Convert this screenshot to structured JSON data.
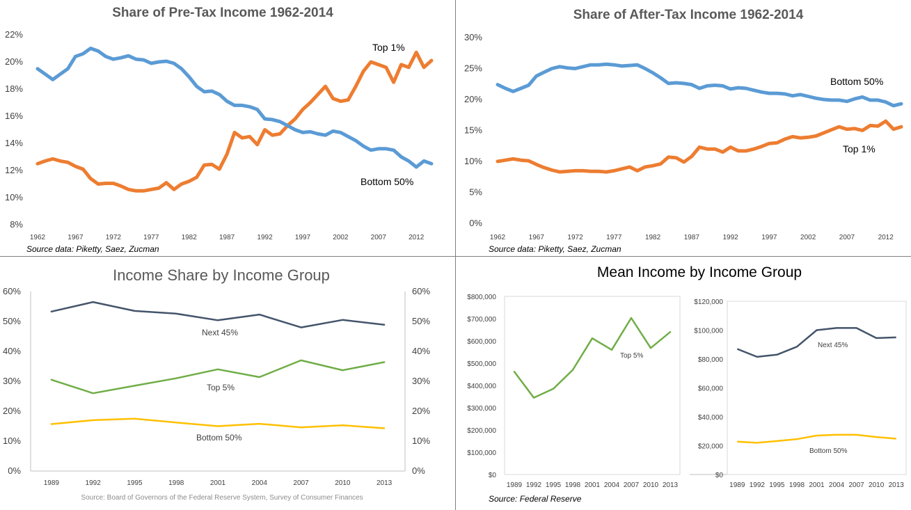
{
  "chart_data": [
    {
      "type": "line",
      "title": "Share of Pre-Tax Income 1962-2014",
      "source": "Source data:  Piketty, Saez, Zucman",
      "ylim": [
        8,
        22
      ],
      "yticks": [
        "8%",
        "10%",
        "12%",
        "14%",
        "16%",
        "18%",
        "20%",
        "22%"
      ],
      "xticks": [
        "1962",
        "1967",
        "1972",
        "1977",
        "1982",
        "1987",
        "1992",
        "1997",
        "2002",
        "2007",
        "2012"
      ],
      "xlim": [
        1962,
        2014
      ],
      "grid": false,
      "series": [
        {
          "name": "Top 1%",
          "color": "#ed7d31",
          "x": [
            1962,
            1963,
            1964,
            1965,
            1966,
            1967,
            1968,
            1969,
            1970,
            1971,
            1972,
            1973,
            1974,
            1975,
            1976,
            1977,
            1978,
            1979,
            1980,
            1981,
            1982,
            1983,
            1984,
            1985,
            1986,
            1987,
            1988,
            1989,
            1990,
            1991,
            1992,
            1993,
            1994,
            1995,
            1996,
            1997,
            1998,
            1999,
            2000,
            2001,
            2002,
            2003,
            2004,
            2005,
            2006,
            2007,
            2008,
            2009,
            2010,
            2011,
            2012,
            2013,
            2014
          ],
          "values": [
            12.5,
            12.7,
            12.85,
            12.7,
            12.6,
            12.3,
            12.1,
            11.4,
            11.0,
            11.05,
            11.05,
            10.85,
            10.6,
            10.5,
            10.5,
            10.6,
            10.7,
            11.1,
            10.6,
            11.0,
            11.2,
            11.5,
            12.4,
            12.45,
            12.1,
            13.2,
            14.8,
            14.4,
            14.5,
            13.9,
            15.0,
            14.6,
            14.7,
            15.3,
            15.8,
            16.5,
            17.0,
            17.6,
            18.2,
            17.3,
            17.1,
            17.2,
            18.2,
            19.3,
            20.0,
            19.8,
            19.6,
            18.5,
            19.8,
            19.6,
            20.7,
            19.6,
            20.1
          ]
        },
        {
          "name": "Bottom 50%",
          "color": "#5b9bd5",
          "x": [
            1962,
            1963,
            1964,
            1965,
            1966,
            1967,
            1968,
            1969,
            1970,
            1971,
            1972,
            1973,
            1974,
            1975,
            1976,
            1977,
            1978,
            1979,
            1980,
            1981,
            1982,
            1983,
            1984,
            1985,
            1986,
            1987,
            1988,
            1989,
            1990,
            1991,
            1992,
            1993,
            1994,
            1995,
            1996,
            1997,
            1998,
            1999,
            2000,
            2001,
            2002,
            2003,
            2004,
            2005,
            2006,
            2007,
            2008,
            2009,
            2010,
            2011,
            2012,
            2013,
            2014
          ],
          "values": [
            19.5,
            19.1,
            18.7,
            19.1,
            19.5,
            20.4,
            20.6,
            21.0,
            20.8,
            20.4,
            20.2,
            20.3,
            20.45,
            20.2,
            20.15,
            19.9,
            20.0,
            20.05,
            19.9,
            19.5,
            18.9,
            18.2,
            17.8,
            17.85,
            17.6,
            17.1,
            16.8,
            16.8,
            16.7,
            16.5,
            15.8,
            15.75,
            15.6,
            15.3,
            15.0,
            14.8,
            14.85,
            14.7,
            14.6,
            14.9,
            14.8,
            14.5,
            14.2,
            13.8,
            13.5,
            13.6,
            13.6,
            13.5,
            13.0,
            12.7,
            12.25,
            12.7,
            12.5
          ]
        }
      ],
      "annotations": [
        "Top 1%",
        "Bottom 50%"
      ]
    },
    {
      "type": "line",
      "title": "Share of After-Tax Income 1962-2014",
      "source": "Source data:  Piketty, Saez, Zucman",
      "ylim": [
        0,
        30
      ],
      "yticks": [
        "0%",
        "5%",
        "10%",
        "15%",
        "20%",
        "25%",
        "30%"
      ],
      "xticks": [
        "1962",
        "1967",
        "1972",
        "1977",
        "1982",
        "1987",
        "1992",
        "1997",
        "2002",
        "2007",
        "2012"
      ],
      "xlim": [
        1962,
        2014
      ],
      "grid": false,
      "series": [
        {
          "name": "Bottom 50%",
          "color": "#5b9bd5",
          "x": [
            1962,
            1963,
            1964,
            1965,
            1966,
            1967,
            1968,
            1969,
            1970,
            1971,
            1972,
            1973,
            1974,
            1975,
            1976,
            1977,
            1978,
            1979,
            1980,
            1981,
            1982,
            1983,
            1984,
            1985,
            1986,
            1987,
            1988,
            1989,
            1990,
            1991,
            1992,
            1993,
            1994,
            1995,
            1996,
            1997,
            1998,
            1999,
            2000,
            2001,
            2002,
            2003,
            2004,
            2005,
            2006,
            2007,
            2008,
            2009,
            2010,
            2011,
            2012,
            2013,
            2014
          ],
          "values": [
            22.4,
            21.8,
            21.3,
            21.8,
            22.3,
            23.8,
            24.4,
            25.0,
            25.3,
            25.1,
            25.0,
            25.3,
            25.6,
            25.6,
            25.7,
            25.6,
            25.4,
            25.5,
            25.6,
            25.0,
            24.3,
            23.5,
            22.6,
            22.7,
            22.6,
            22.4,
            21.8,
            22.2,
            22.3,
            22.2,
            21.7,
            21.9,
            21.8,
            21.5,
            21.2,
            21.0,
            21.0,
            20.9,
            20.6,
            20.8,
            20.5,
            20.2,
            20.0,
            19.9,
            19.9,
            19.7,
            20.1,
            20.4,
            19.9,
            19.9,
            19.6,
            19.0,
            19.3
          ]
        },
        {
          "name": "Top 1%",
          "color": "#ed7d31",
          "x": [
            1962,
            1963,
            1964,
            1965,
            1966,
            1967,
            1968,
            1969,
            1970,
            1971,
            1972,
            1973,
            1974,
            1975,
            1976,
            1977,
            1978,
            1979,
            1980,
            1981,
            1982,
            1983,
            1984,
            1985,
            1986,
            1987,
            1988,
            1989,
            1990,
            1991,
            1992,
            1993,
            1994,
            1995,
            1996,
            1997,
            1998,
            1999,
            2000,
            2001,
            2002,
            2003,
            2004,
            2005,
            2006,
            2007,
            2008,
            2009,
            2010,
            2011,
            2012,
            2013,
            2014
          ],
          "values": [
            10.0,
            10.2,
            10.4,
            10.2,
            10.1,
            9.5,
            9.0,
            8.6,
            8.3,
            8.4,
            8.5,
            8.5,
            8.4,
            8.4,
            8.3,
            8.5,
            8.8,
            9.1,
            8.5,
            9.1,
            9.3,
            9.6,
            10.7,
            10.6,
            9.9,
            10.8,
            12.3,
            12.0,
            12.0,
            11.5,
            12.3,
            11.7,
            11.7,
            12.0,
            12.4,
            12.9,
            13.0,
            13.6,
            14.0,
            13.8,
            13.9,
            14.1,
            14.6,
            15.1,
            15.6,
            15.2,
            15.3,
            15.0,
            15.8,
            15.7,
            16.5,
            15.2,
            15.6
          ]
        }
      ],
      "annotations": [
        "Bottom 50%",
        "Top 1%"
      ]
    },
    {
      "type": "line",
      "title": "Income Share by Income Group",
      "source": "Source: Board of Governors of the Federal Reserve System, Survey of Consumer Finances",
      "ylim": [
        0,
        60
      ],
      "yticks": [
        "0%",
        "10%",
        "20%",
        "30%",
        "40%",
        "50%",
        "60%"
      ],
      "categories": [
        "1989",
        "1992",
        "1995",
        "1998",
        "2001",
        "2004",
        "2007",
        "2010",
        "2013"
      ],
      "grid": false,
      "series": [
        {
          "name": "Next 45%",
          "color": "#44546a",
          "values": [
            53.3,
            56.5,
            53.5,
            52.6,
            50.4,
            52.3,
            48.0,
            50.5,
            48.9
          ]
        },
        {
          "name": "Top 5%",
          "color": "#70ad47",
          "values": [
            30.5,
            26.0,
            28.5,
            31.0,
            34.0,
            31.4,
            37.0,
            33.7,
            36.4
          ]
        },
        {
          "name": "Bottom 50%",
          "color": "#ffc000",
          "values": [
            15.7,
            17.0,
            17.5,
            16.2,
            15.0,
            15.8,
            14.6,
            15.3,
            14.3
          ]
        }
      ],
      "annotations": [
        "Next 45%",
        "Top 5%",
        "Bottom 50%"
      ]
    },
    {
      "type": "line",
      "title": "Mean Income by Income Group",
      "source": "Source:  Federal Reserve",
      "subcharts": [
        {
          "ylim": [
            0,
            800000
          ],
          "yticks": [
            "$0",
            "$100,000",
            "$200,000",
            "$300,000",
            "$400,000",
            "$500,000",
            "$600,000",
            "$700,000",
            "$800,000"
          ],
          "categories": [
            "1989",
            "1992",
            "1995",
            "1998",
            "2001",
            "2004",
            "2007",
            "2010",
            "2013"
          ],
          "series": [
            {
              "name": "Top 5%",
              "color": "#70ad47",
              "values": [
                462000,
                345000,
                385000,
                470000,
                612000,
                560000,
                703000,
                568000,
                640000
              ]
            }
          ],
          "annotations": [
            "Top 5%"
          ]
        },
        {
          "ylim": [
            0,
            120000
          ],
          "yticks": [
            "$0",
            "$20,000",
            "$40,000",
            "$60,000",
            "$80,000",
            "$100,000",
            "$120,000"
          ],
          "categories": [
            "1989",
            "1992",
            "1995",
            "1998",
            "2001",
            "2004",
            "2007",
            "2010",
            "2013"
          ],
          "series": [
            {
              "name": "Next 45%",
              "color": "#44546a",
              "values": [
                87000,
                81500,
                83000,
                88500,
                100000,
                101500,
                101500,
                94500,
                95000
              ]
            },
            {
              "name": "Bottom 50%",
              "color": "#ffc000",
              "values": [
                22800,
                22000,
                23200,
                24500,
                27000,
                27500,
                27500,
                26000,
                24800
              ]
            }
          ],
          "annotations": [
            "Next 45%",
            "Bottom 50%"
          ]
        }
      ]
    }
  ]
}
